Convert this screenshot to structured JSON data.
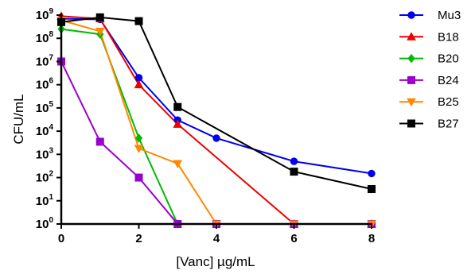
{
  "chart_data": {
    "type": "line",
    "xlabel": "[Vanc] µg/mL",
    "ylabel": "CFU/mL",
    "xlim": [
      0,
      8
    ],
    "ylim": [
      1,
      1000000000
    ],
    "yscale": "log",
    "grid": false,
    "legend_position": "right",
    "x_ticks": [
      0,
      2,
      4,
      6,
      8
    ],
    "y_tick_base": "10",
    "y_tick_exponents": [
      "0",
      "1",
      "2",
      "3",
      "4",
      "5",
      "6",
      "7",
      "8",
      "9"
    ],
    "series": [
      {
        "name": "Mu3",
        "color": "#0000ee",
        "marker": "circle",
        "x": [
          0,
          1,
          2,
          3,
          4,
          6,
          8
        ],
        "y": [
          700000000,
          650000000,
          2000000,
          30000,
          5000,
          500,
          150
        ]
      },
      {
        "name": "B18",
        "color": "#ee0000",
        "marker": "triangle-up",
        "x": [
          0,
          1,
          2,
          3,
          6,
          8
        ],
        "y": [
          900000000,
          700000000,
          1000000,
          20000,
          1,
          1
        ]
      },
      {
        "name": "B20",
        "color": "#00bb00",
        "marker": "diamond",
        "x": [
          0,
          1,
          2,
          3,
          4,
          6,
          8
        ],
        "y": [
          250000000,
          150000000,
          5000,
          1,
          1,
          1,
          1
        ]
      },
      {
        "name": "B24",
        "color": "#9900cc",
        "marker": "square",
        "x": [
          0,
          1,
          2,
          3,
          4,
          6,
          8
        ],
        "y": [
          10000000,
          3500,
          100,
          1,
          1,
          1,
          1
        ]
      },
      {
        "name": "B25",
        "color": "#ff8800",
        "marker": "triangle-down",
        "x": [
          0,
          1,
          2,
          3,
          4,
          6,
          8
        ],
        "y": [
          600000000,
          200000000,
          1800,
          400,
          1,
          1,
          1
        ]
      },
      {
        "name": "B27",
        "color": "#000000",
        "marker": "square",
        "x": [
          0,
          1,
          2,
          3,
          6,
          8
        ],
        "y": [
          500000000,
          800000000,
          550000000,
          110000,
          180,
          32
        ]
      }
    ]
  }
}
